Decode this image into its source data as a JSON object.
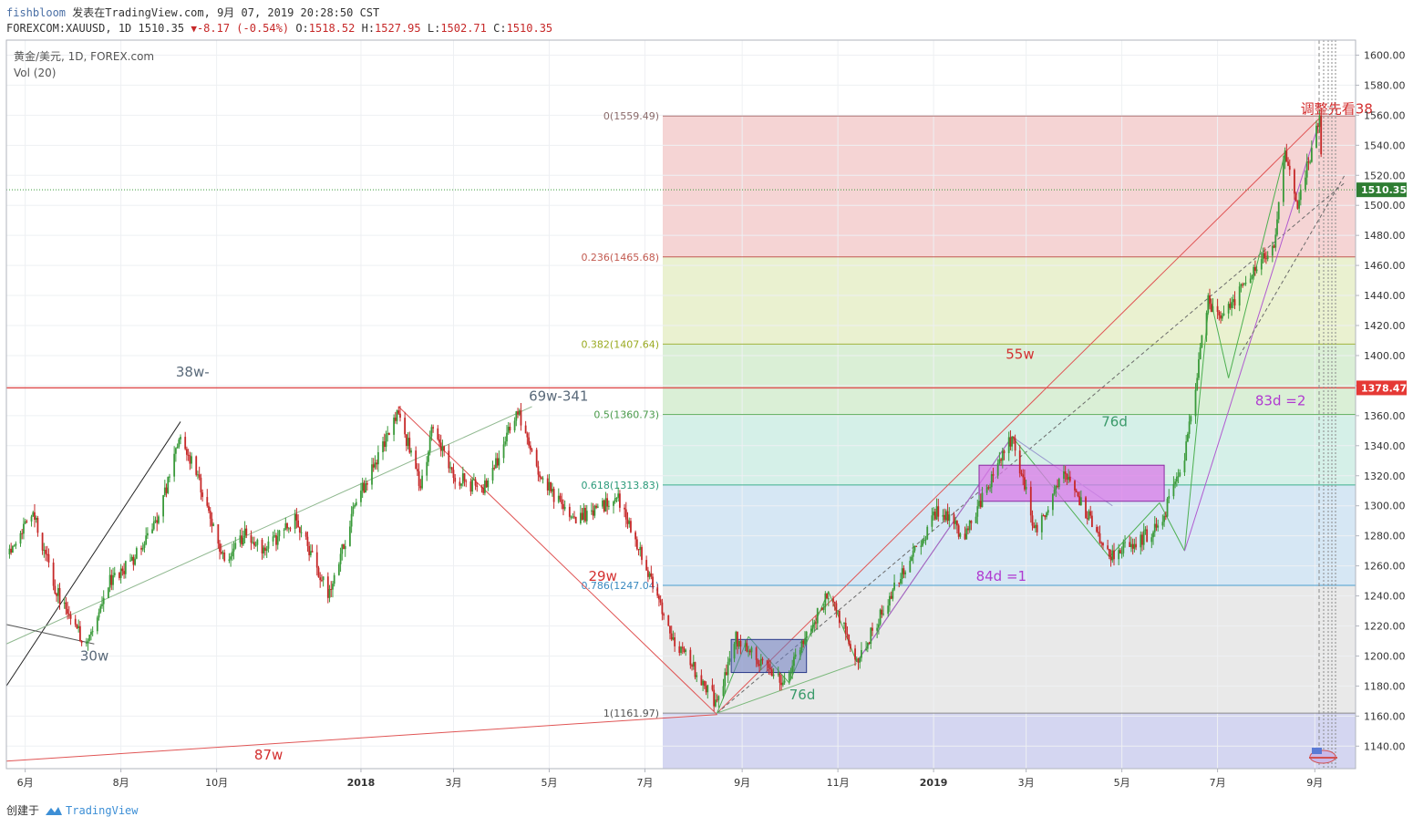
{
  "header": {
    "user": "fishbloom",
    "published": "发表在TradingView.com, 9月 07, 2019 20:28:50 CST",
    "symbol_line": "FOREXCOM:XAUUSD, 1D 1510.35",
    "change": "-8.17 (-0.54%)",
    "open_label": "O:",
    "open": "1518.52",
    "high_label": "H:",
    "high": "1527.95",
    "low_label": "L:",
    "low": "1502.71",
    "close_label": "C:",
    "close": "1510.35"
  },
  "legend": {
    "title": "黄金/美元, 1D, FOREX.com",
    "indicator": "Vol (20)"
  },
  "footer": {
    "created": "创建于",
    "brand": "TradingView"
  },
  "colors": {
    "up": "#3a9a3a",
    "down": "#c62828",
    "grid": "#eef0f3",
    "axis_text": "#333333"
  },
  "chart_data": {
    "type": "candlestick",
    "ylim": [
      1125,
      1610
    ],
    "y_ticks": [
      "1140.00",
      "1160.00",
      "1180.00",
      "1200.00",
      "1220.00",
      "1240.00",
      "1260.00",
      "1280.00",
      "1300.00",
      "1320.00",
      "1340.00",
      "1360.00",
      "1380.00",
      "1400.00",
      "1420.00",
      "1440.00",
      "1460.00",
      "1480.00",
      "1500.00",
      "1520.00",
      "1540.00",
      "1560.00",
      "1580.00",
      "1600.00"
    ],
    "x_ticks": [
      {
        "label": "6月",
        "date": "2017-06-01"
      },
      {
        "label": "8月",
        "date": "2017-08-01"
      },
      {
        "label": "10月",
        "date": "2017-10-01"
      },
      {
        "label": "2018",
        "date": "2018-01-01"
      },
      {
        "label": "3月",
        "date": "2018-03-01"
      },
      {
        "label": "5月",
        "date": "2018-05-01"
      },
      {
        "label": "7月",
        "date": "2018-07-01"
      },
      {
        "label": "9月",
        "date": "2018-09-01"
      },
      {
        "label": "11月",
        "date": "2018-11-01"
      },
      {
        "label": "2019",
        "date": "2019-01-01"
      },
      {
        "label": "3月",
        "date": "2019-03-01"
      },
      {
        "label": "5月",
        "date": "2019-05-01"
      },
      {
        "label": "7月",
        "date": "2019-07-01"
      },
      {
        "label": "9月",
        "date": "2019-09-01"
      }
    ],
    "price_path": [
      [
        "2017-05-20",
        1265
      ],
      [
        "2017-05-26",
        1273
      ],
      [
        "2017-06-06",
        1296
      ],
      [
        "2017-06-20",
        1245
      ],
      [
        "2017-07-03",
        1220
      ],
      [
        "2017-07-10",
        1207
      ],
      [
        "2017-07-25",
        1251
      ],
      [
        "2017-08-08",
        1262
      ],
      [
        "2017-08-25",
        1292
      ],
      [
        "2017-09-08",
        1350
      ],
      [
        "2017-09-20",
        1315
      ],
      [
        "2017-10-06",
        1262
      ],
      [
        "2017-10-20",
        1283
      ],
      [
        "2017-11-01",
        1270
      ],
      [
        "2017-11-20",
        1292
      ],
      [
        "2017-12-12",
        1240
      ],
      [
        "2017-12-28",
        1300
      ],
      [
        "2018-01-25",
        1361
      ],
      [
        "2018-02-08",
        1314
      ],
      [
        "2018-02-16",
        1353
      ],
      [
        "2018-03-01",
        1320
      ],
      [
        "2018-03-20",
        1310
      ],
      [
        "2018-04-11",
        1362
      ],
      [
        "2018-04-25",
        1320
      ],
      [
        "2018-05-15",
        1290
      ],
      [
        "2018-06-14",
        1305
      ],
      [
        "2018-07-19",
        1212
      ],
      [
        "2018-08-16",
        1168
      ],
      [
        "2018-08-28",
        1212
      ],
      [
        "2018-09-28",
        1182
      ],
      [
        "2018-10-26",
        1243
      ],
      [
        "2018-11-13",
        1197
      ],
      [
        "2018-12-10",
        1250
      ],
      [
        "2019-01-04",
        1297
      ],
      [
        "2019-01-20",
        1280
      ],
      [
        "2019-02-20",
        1346
      ],
      [
        "2019-03-07",
        1283
      ],
      [
        "2019-03-25",
        1324
      ],
      [
        "2019-04-23",
        1266
      ],
      [
        "2019-05-25",
        1285
      ],
      [
        "2019-06-10",
        1333
      ],
      [
        "2019-06-25",
        1438
      ],
      [
        "2019-07-03",
        1420
      ],
      [
        "2019-07-19",
        1452
      ],
      [
        "2019-08-06",
        1475
      ],
      [
        "2019-08-13",
        1535
      ],
      [
        "2019-08-20",
        1498
      ],
      [
        "2019-09-04",
        1557
      ],
      [
        "2019-09-06",
        1510
      ]
    ],
    "last_price": "1510.35",
    "level_price": "1378.47",
    "fib_levels": [
      {
        "ratio": 0,
        "price": 1559.49,
        "label": "0(1559.49)"
      },
      {
        "ratio": 0.236,
        "price": 1465.68,
        "label": "0.236(1465.68)"
      },
      {
        "ratio": 0.382,
        "price": 1407.64,
        "label": "0.382(1407.64)"
      },
      {
        "ratio": 0.5,
        "price": 1360.73,
        "label": "0.5(1360.73)"
      },
      {
        "ratio": 0.618,
        "price": 1313.83,
        "label": "0.618(1313.83)"
      },
      {
        "ratio": 0.786,
        "price": 1247.04,
        "label": "0.786(1247.04)"
      },
      {
        "ratio": 1,
        "price": 1161.97,
        "label": "1(1161.97)"
      }
    ],
    "annotations": [
      {
        "text": "38w-",
        "date": "2017-09-05",
        "price": 1386,
        "color": "#5a6a7a"
      },
      {
        "text": "69w-341",
        "date": "2018-04-18",
        "price": 1370,
        "color": "#5a6a7a"
      },
      {
        "text": "30w",
        "date": "2017-07-06",
        "price": 1197,
        "color": "#5a6a7a"
      },
      {
        "text": "29w",
        "date": "2018-05-26",
        "price": 1250,
        "color": "#d32f2f"
      },
      {
        "text": "87w",
        "date": "2017-10-25",
        "price": 1131,
        "color": "#d32f2f"
      },
      {
        "text": "55w",
        "date": "2019-02-16",
        "price": 1398,
        "color": "#d32f2f"
      },
      {
        "text": "76d",
        "date": "2019-04-18",
        "price": 1353,
        "color": "#3a9a6a"
      },
      {
        "text": "76d",
        "date": "2018-10-01",
        "price": 1171,
        "color": "#3a9a6a"
      },
      {
        "text": "84d =1",
        "date": "2019-01-28",
        "price": 1250,
        "color": "#b03ad0"
      },
      {
        "text": "83d =2",
        "date": "2019-07-25",
        "price": 1367,
        "color": "#b03ad0"
      },
      {
        "text": "调整先看38",
        "date": "2019-08-23",
        "price": 1561,
        "color": "#d32f2f"
      }
    ]
  }
}
